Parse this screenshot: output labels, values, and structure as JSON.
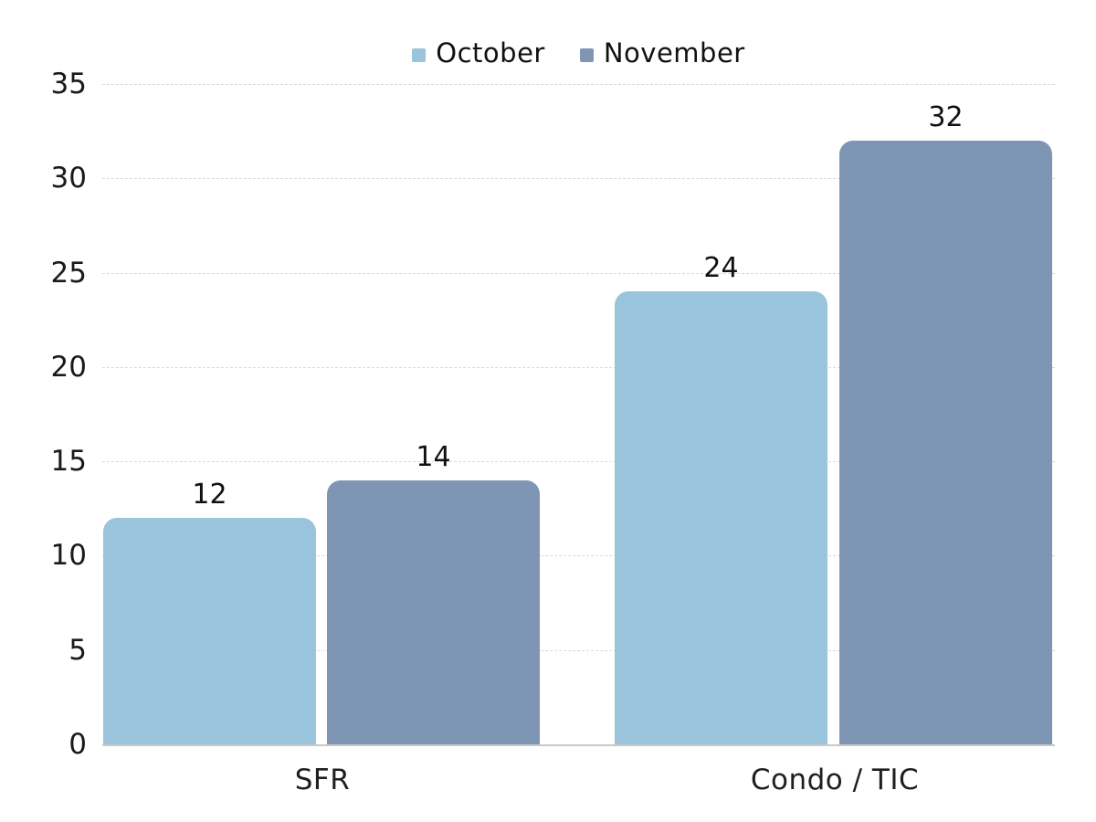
{
  "chart_data": {
    "type": "bar",
    "title": "",
    "xlabel": "",
    "ylabel": "",
    "categories": [
      "SFR",
      "Condo / TIC"
    ],
    "series": [
      {
        "name": "October",
        "color": "#9AC3DC",
        "values": [
          12,
          24
        ]
      },
      {
        "name": "November",
        "color": "#7E96B4",
        "values": [
          14,
          32
        ]
      }
    ],
    "ylim": [
      0,
      35
    ],
    "yticks": [
      0,
      5,
      10,
      15,
      20,
      25,
      30,
      35
    ],
    "grid": true,
    "gridline_color": "#D9D9D9",
    "baseline_color": "#C9C9C9",
    "legend_position": "top",
    "data_labels": true,
    "background_color": "#FFFFFF",
    "text_color": "#1A1A1A"
  }
}
